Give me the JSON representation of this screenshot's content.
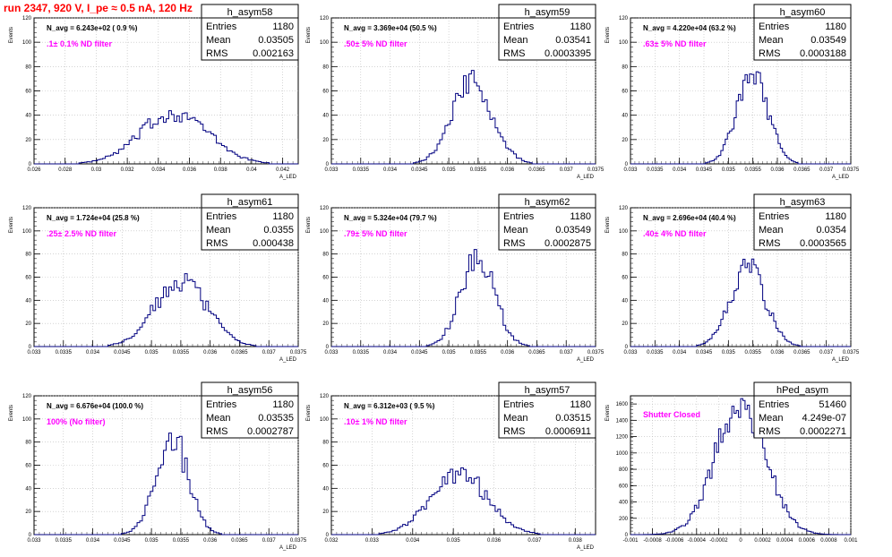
{
  "main_title": "run 2347,   920 V, I_pe ≈ 0.5 nA, 120 Hz",
  "colors": {
    "histogram": "#000080",
    "title": "#ff0000",
    "annotation": "#ff00ff",
    "grid": "#bbbbbb"
  },
  "chart_data": [
    {
      "type": "bar",
      "name": "h_asym58",
      "navg": "N_avg = 6.243e+02 ( 0.9 %)",
      "filter": ".1± 0.1% ND filter",
      "stats": [
        [
          "Entries",
          "1180"
        ],
        [
          "Mean",
          "0.03505"
        ],
        [
          "RMS",
          "0.002163"
        ]
      ],
      "ylabel": "Events",
      "xlabel": "A_LED",
      "ylim": [
        0,
        120
      ],
      "yticks": [
        "0",
        "20",
        "40",
        "60",
        "80",
        "100",
        "120"
      ],
      "xticks": [
        "0.026",
        "0.028",
        "0.03",
        "0.032",
        "0.034",
        "0.036",
        "0.038",
        "0.04",
        "0.042"
      ],
      "xlim": [
        0.026,
        0.043
      ],
      "mean": 0.03505,
      "rms": 0.002163,
      "peak": 42,
      "grid": true
    },
    {
      "type": "bar",
      "name": "h_asym59",
      "navg": "N_avg = 3.369e+04 (50.5 %)",
      "filter": ".50± 5% ND filter",
      "stats": [
        [
          "Entries",
          "1180"
        ],
        [
          "Mean",
          "0.03541"
        ],
        [
          "RMS",
          "0.0003395"
        ]
      ],
      "ylabel": "Events",
      "xlabel": "A_LED",
      "ylim": [
        0,
        120
      ],
      "yticks": [
        "0",
        "20",
        "40",
        "60",
        "80",
        "100",
        "120"
      ],
      "xticks": [
        "0.033",
        "0.0335",
        "0.034",
        "0.0345",
        "0.035",
        "0.0355",
        "0.036",
        "0.0365",
        "0.037",
        "0.0375"
      ],
      "xlim": [
        0.033,
        0.0375
      ],
      "mean": 0.03541,
      "rms": 0.0003395,
      "peak": 68,
      "grid": true
    },
    {
      "type": "bar",
      "name": "h_asym60",
      "navg": "N_avg = 4.220e+04 (63.2 %)",
      "filter": ".63± 5% ND filter",
      "stats": [
        [
          "Entries",
          "1180"
        ],
        [
          "Mean",
          "0.03549"
        ],
        [
          "RMS",
          "0.0003188"
        ]
      ],
      "ylabel": "Events",
      "xlabel": "A_LED",
      "ylim": [
        0,
        120
      ],
      "yticks": [
        "0",
        "20",
        "40",
        "60",
        "80",
        "100",
        "120"
      ],
      "xticks": [
        "0.033",
        "0.0335",
        "0.034",
        "0.0345",
        "0.035",
        "0.0355",
        "0.036",
        "0.0365",
        "0.037",
        "0.0375"
      ],
      "xlim": [
        0.033,
        0.0375
      ],
      "mean": 0.03549,
      "rms": 0.0003188,
      "peak": 72,
      "grid": true
    },
    {
      "type": "bar",
      "name": "h_asym61",
      "navg": "N_avg = 1.724e+04 (25.8 %)",
      "filter": ".25± 2.5% ND filter",
      "stats": [
        [
          "Entries",
          "1180"
        ],
        [
          "Mean",
          "0.0355"
        ],
        [
          "RMS",
          "0.000438"
        ]
      ],
      "ylabel": "Events",
      "xlabel": "A_LED",
      "ylim": [
        0,
        120
      ],
      "yticks": [
        "0",
        "20",
        "40",
        "60",
        "80",
        "100",
        "120"
      ],
      "xticks": [
        "0.033",
        "0.0335",
        "0.034",
        "0.0345",
        "0.035",
        "0.0355",
        "0.036",
        "0.0365",
        "0.037",
        "0.0375"
      ],
      "xlim": [
        0.033,
        0.0375
      ],
      "mean": 0.0355,
      "rms": 0.000438,
      "peak": 58,
      "grid": true
    },
    {
      "type": "bar",
      "name": "h_asym62",
      "navg": "N_avg = 5.324e+04 (79.7 %)",
      "filter": ".79± 5% ND filter",
      "stats": [
        [
          "Entries",
          "1180"
        ],
        [
          "Mean",
          "0.03549"
        ],
        [
          "RMS",
          "0.0002875"
        ]
      ],
      "ylabel": "Events",
      "xlabel": "A_LED",
      "ylim": [
        0,
        120
      ],
      "yticks": [
        "0",
        "20",
        "40",
        "60",
        "80",
        "100",
        "120"
      ],
      "xticks": [
        "0.033",
        "0.0335",
        "0.034",
        "0.0345",
        "0.035",
        "0.0355",
        "0.036",
        "0.0365",
        "0.037",
        "0.0375"
      ],
      "xlim": [
        0.033,
        0.0375
      ],
      "mean": 0.03549,
      "rms": 0.0002875,
      "peak": 78,
      "grid": true
    },
    {
      "type": "bar",
      "name": "h_asym63",
      "navg": "N_avg = 2.696e+04 (40.4 %)",
      "filter": ".40± 4% ND filter",
      "stats": [
        [
          "Entries",
          "1180"
        ],
        [
          "Mean",
          "0.0354"
        ],
        [
          "RMS",
          "0.0003565"
        ]
      ],
      "ylabel": "Events",
      "xlabel": "A_LED",
      "ylim": [
        0,
        120
      ],
      "yticks": [
        "0",
        "20",
        "40",
        "60",
        "80",
        "100",
        "120"
      ],
      "xticks": [
        "0.033",
        "0.0335",
        "0.034",
        "0.0345",
        "0.035",
        "0.0355",
        "0.036",
        "0.0365",
        "0.037",
        "0.0375"
      ],
      "xlim": [
        0.033,
        0.0375
      ],
      "mean": 0.0354,
      "rms": 0.0003565,
      "peak": 67,
      "grid": true
    },
    {
      "type": "bar",
      "name": "h_asym56",
      "navg": "N_avg = 6.676e+04 (100.0 %)",
      "filter": "100% (No filter)",
      "stats": [
        [
          "Entries",
          "1180"
        ],
        [
          "Mean",
          "0.03535"
        ],
        [
          "RMS",
          "0.0002787"
        ]
      ],
      "ylabel": "Events",
      "xlabel": "A_LED",
      "ylim": [
        0,
        120
      ],
      "yticks": [
        "0",
        "20",
        "40",
        "60",
        "80",
        "100",
        "120"
      ],
      "xticks": [
        "0.033",
        "0.0335",
        "0.034",
        "0.0345",
        "0.035",
        "0.0355",
        "0.036",
        "0.0365",
        "0.037",
        "0.0375"
      ],
      "xlim": [
        0.033,
        0.0375
      ],
      "mean": 0.03535,
      "rms": 0.0002787,
      "peak": 83,
      "grid": true
    },
    {
      "type": "bar",
      "name": "h_asym57",
      "navg": "N_avg = 6.312e+03 ( 9.5 %)",
      "filter": ".10± 1% ND filter",
      "stats": [
        [
          "Entries",
          "1180"
        ],
        [
          "Mean",
          "0.03515"
        ],
        [
          "RMS",
          "0.0006911"
        ]
      ],
      "ylabel": "Events",
      "xlabel": "A_LED",
      "ylim": [
        0,
        120
      ],
      "yticks": [
        "0",
        "20",
        "40",
        "60",
        "80",
        "100",
        "120"
      ],
      "xticks": [
        "0.032",
        "0.033",
        "0.034",
        "0.035",
        "0.036",
        "0.037",
        "0.038"
      ],
      "xlim": [
        0.032,
        0.0385
      ],
      "mean": 0.03515,
      "rms": 0.0006911,
      "peak": 53,
      "grid": true
    },
    {
      "type": "bar",
      "name": "hPed_asym",
      "navg": "",
      "filter": "Shutter Closed",
      "stats": [
        [
          "Entries",
          "51460"
        ],
        [
          "Mean",
          "4.249e-07"
        ],
        [
          "RMS",
          "0.0002271"
        ]
      ],
      "ylabel": "Events",
      "xlabel": "",
      "ylim": [
        0,
        1700
      ],
      "yticks": [
        "0",
        "200",
        "400",
        "600",
        "800",
        "1000",
        "1200",
        "1400",
        "1600"
      ],
      "xticks": [
        "-0.001",
        "-0.0008",
        "-0.0006",
        "-0.0004",
        "-0.0002",
        "0",
        "0.0002",
        "0.0004",
        "0.0006",
        "0.0008",
        "0.001"
      ],
      "xlim": [
        -0.001,
        0.001
      ],
      "mean": 4.249e-07,
      "rms": 0.0002271,
      "peak": 1610,
      "grid": true
    }
  ]
}
